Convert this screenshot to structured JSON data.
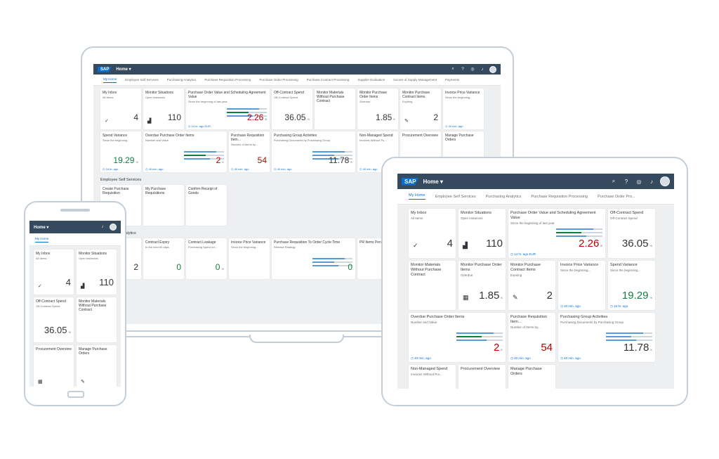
{
  "shell": {
    "logo": "SAP",
    "home_label": "Home ▾",
    "icons": [
      "search-icon",
      "help-icon",
      "copilot-icon",
      "notifications-icon"
    ]
  },
  "laptop": {
    "tabs": [
      "My Home",
      "Employee Self Services",
      "Purchasing Analytics",
      "Purchase Requisition Processing",
      "Purchase Order Processing",
      "Purchase Contract Processing",
      "Supplier Evaluation",
      "Invoice of Supply Management",
      "Payments"
    ],
    "tiles": [
      {
        "title": "My Inbox",
        "sub": "All Items",
        "kpi": "4",
        "icon": "✓"
      },
      {
        "title": "Monitor Situations",
        "sub": "Open Instances",
        "kpi": "110",
        "icon": "▟"
      },
      {
        "title": "Purchase Order Value and Scheduling Agreement Value",
        "sub": "Since the beginning of last year",
        "kpi": "2.26",
        "unit": "B",
        "foot": "14 hr. ago EUR",
        "wide": true,
        "red": true
      },
      {
        "title": "Off-Contract Spend",
        "sub": "Off-Contract Spend",
        "kpi": "36.05",
        "unit": "%"
      },
      {
        "title": "Monitor Materials Without Purchase Contract",
        "sub": "",
        "kpi": ""
      },
      {
        "title": "Monitor Purchase Order Items",
        "sub": "Overdue",
        "kpi": "1.85",
        "unit": "K"
      },
      {
        "title": "Monitor Purchase Contract Items",
        "sub": "Expiring",
        "kpi": "2",
        "icon": "✎"
      },
      {
        "title": "Invoice Price Variance",
        "sub": "Since the beginning...",
        "kpi": "",
        "foot": "40 min. ago"
      },
      {
        "title": "Spend Variance",
        "sub": "Since the beginning...",
        "kpi": "19.29",
        "unit": "%",
        "foot": "16 hr. ago",
        "green": true
      },
      {
        "title": "Overdue Purchase Order Items",
        "sub": "Number and Value",
        "kpi": "2",
        "unit": "K",
        "foot": "40 min. ago",
        "wide": true,
        "red": true
      },
      {
        "title": "Purchase Requisition Item...",
        "sub": "Number of Items by...",
        "kpi": "54",
        "foot": "40 min. ago",
        "red": true
      },
      {
        "title": "Purchasing Group Activities",
        "sub": "Purchasing Documents by Purchasing Group",
        "kpi": "11.78",
        "unit": "K",
        "foot": "40 min. ago",
        "wide": true
      },
      {
        "title": "Non-Managed Spend",
        "sub": "Invoices Without Pu...",
        "kpi": "",
        "foot": "40 min. ago"
      },
      {
        "title": "Procurement Overview",
        "sub": "",
        "kpi": ""
      },
      {
        "title": "Manage Purchase Orders",
        "sub": "",
        "kpi": ""
      }
    ],
    "section1": "Employee Self Services",
    "ess_tiles": [
      {
        "title": "Create Purchase Requisition",
        "sub": ""
      },
      {
        "title": "My Purchase Requisitions",
        "sub": ""
      },
      {
        "title": "Confirm Receipt of Goods",
        "sub": ""
      }
    ],
    "section2": "Purchasing Analytics",
    "analytics_tiles": [
      {
        "title": "Contracts",
        "sub": "Count and time...",
        "kpi": "2"
      },
      {
        "title": "Contract Expiry",
        "sub": "In the next 90 days",
        "kpi": "0",
        "green": true
      },
      {
        "title": "Contract Leakage",
        "sub": "Purchasing Spend wi...",
        "kpi": "0",
        "unit": "%",
        "green": true
      },
      {
        "title": "Invoice Price Variance",
        "sub": "Since the beginning...",
        "kpi": ""
      },
      {
        "title": "Purchase Requisition To Order Cycle Time",
        "sub": "Release Strategy",
        "kpi": "0",
        "wide": true,
        "green": true
      },
      {
        "title": "PR Items Pending",
        "sub": "",
        "kpi": ""
      }
    ]
  },
  "tablet": {
    "tabs": [
      "My Home",
      "Employee Self Services",
      "Purchasing Analytics",
      "Purchase Requisition Processing",
      "Purchase Order Pro..."
    ],
    "tiles": [
      {
        "title": "My Inbox",
        "sub": "All Items",
        "kpi": "4",
        "icon": "✓"
      },
      {
        "title": "Monitor Situations",
        "sub": "Open Instances",
        "kpi": "110",
        "icon": "▟"
      },
      {
        "title": "Purchase Order Value and Scheduling Agreement Value",
        "sub": "Since the beginning of last year",
        "kpi": "2.26",
        "unit": "B",
        "foot": "14 hr. ago EUR",
        "wide": true,
        "red": true
      },
      {
        "title": "Off-Contract Spend",
        "sub": "Off-Contract Spend",
        "kpi": "36.05",
        "unit": "%"
      },
      {
        "title": "Monitor Materials Without Purchase Contract",
        "sub": "",
        "kpi": ""
      },
      {
        "title": "Monitor Purchase Order Items",
        "sub": "Overdue",
        "kpi": "1.85",
        "unit": "K",
        "icon": "▦"
      },
      {
        "title": "Monitor Purchase Contract Items",
        "sub": "Expiring",
        "kpi": "2",
        "icon": "✎"
      },
      {
        "title": "Invoice Price Variance",
        "sub": "Since the beginning...",
        "kpi": "",
        "foot": "40 min. ago"
      },
      {
        "title": "Spend Variance",
        "sub": "Since the beginning...",
        "kpi": "19.29",
        "unit": "%",
        "foot": "16 hr. ago",
        "green": true
      },
      {
        "title": "Overdue Purchase Order Items",
        "sub": "Number and Value",
        "kpi": "2",
        "unit": "K",
        "foot": "40 min. ago",
        "wide": true,
        "red": true
      },
      {
        "title": "Purchase Requisition Item...",
        "sub": "Number of Items by...",
        "kpi": "54",
        "foot": "40 min. ago",
        "red": true
      },
      {
        "title": "Purchasing Group Activities",
        "sub": "Purchasing Documents by Purchasing Group",
        "kpi": "11.78",
        "unit": "K",
        "foot": "40 min. ago",
        "wide": true
      },
      {
        "title": "Non-Managed Spend",
        "sub": "Invoices Without Pur...",
        "kpi": ""
      },
      {
        "title": "Procurement Overview",
        "sub": "",
        "kpi": ""
      },
      {
        "title": "Manage Purchase Orders",
        "sub": "",
        "kpi": ""
      }
    ]
  },
  "phone": {
    "tabs": [
      "My Home"
    ],
    "tiles": [
      {
        "title": "My Inbox",
        "sub": "All Items",
        "kpi": "4",
        "icon": "✓"
      },
      {
        "title": "Monitor Situations",
        "sub": "Open Instances",
        "kpi": "110",
        "icon": "▟"
      },
      {
        "title": "Off-Contract Spend",
        "sub": "Off-Contract Spend",
        "kpi": "36.05",
        "unit": "%"
      },
      {
        "title": "Monitor Materials Without Purchase Contract",
        "sub": "",
        "kpi": ""
      },
      {
        "title": "Procurement Overview",
        "sub": "",
        "kpi": "",
        "icon": "▦"
      },
      {
        "title": "Manage Purchase Orders",
        "sub": "",
        "kpi": "",
        "icon": "✎"
      }
    ]
  }
}
